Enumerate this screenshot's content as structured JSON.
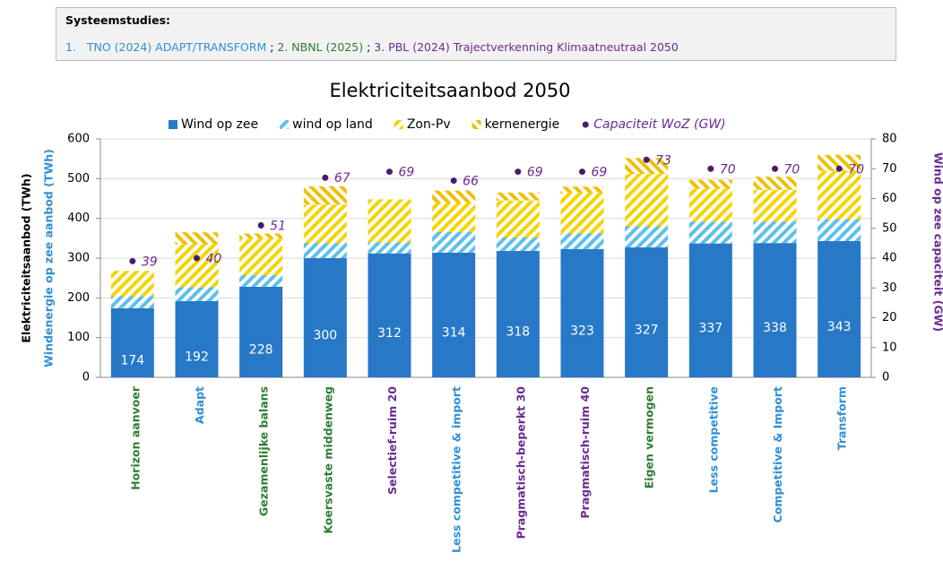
{
  "header": {
    "title": "Systeemstudies:",
    "segments": [
      {
        "text": "1.   TNO (2024) ADAPT/TRANSFORM",
        "color": "#2f8fd6"
      },
      {
        "text": " ; ",
        "color": "#000000"
      },
      {
        "text": "2. NBNL (2025)",
        "color": "#2e7d32"
      },
      {
        "text": " ; ",
        "color": "#000000"
      },
      {
        "text": "3. PBL (2024) Trajectverkenning Klimaatneutraal 2050",
        "color": "#6a2c91"
      }
    ]
  },
  "chart_data": {
    "type": "bar",
    "title": "Elektriciteitsaanbod 2050",
    "ylabel": "Elektriciteitsaanbod (TWh)",
    "ylabel2": "Windenergie op zee aanbod (TWh)",
    "y2label": "Wind op zee capaciteit (GW)",
    "categories": [
      "Horizon aanvoer",
      "Adapt",
      "Gezamenlijke balans",
      "Koersvaste middenweg",
      "Selectief-ruim 20",
      "Less competitive & import",
      "Pragmatisch-beperkt 30",
      "Pragmatisch-ruim 40",
      "Eigen vermogen",
      "Less competitive",
      "Competitive & Import",
      "Transform"
    ],
    "category_colors": [
      "#2e7d32",
      "#2f8fd6",
      "#2e7d32",
      "#2e7d32",
      "#6a2c91",
      "#2f8fd6",
      "#6a2c91",
      "#6a2c91",
      "#2e7d32",
      "#2f8fd6",
      "#2f8fd6",
      "#2f8fd6"
    ],
    "series": [
      {
        "name": "Wind op zee",
        "color": "#2878c8",
        "hatch": "none",
        "values": [
          174,
          192,
          228,
          300,
          312,
          314,
          318,
          323,
          327,
          337,
          338,
          343
        ]
      },
      {
        "name": "wind op land",
        "color": "#5bc0ee",
        "hatch": "right",
        "values": [
          30,
          35,
          29,
          38,
          28,
          52,
          34,
          39,
          53,
          55,
          54,
          55
        ]
      },
      {
        "name": "Zon-Pv",
        "color": "#f5d400",
        "hatch": "right",
        "values": [
          64,
          108,
          93,
          97,
          108,
          74,
          93,
          103,
          132,
          83,
          80,
          122
        ]
      },
      {
        "name": "kernenergie",
        "color": "#f0c000",
        "hatch": "left",
        "values": [
          0,
          30,
          12,
          46,
          0,
          30,
          20,
          15,
          40,
          22,
          33,
          40
        ]
      },
      {
        "name": "Capaciteit WoZ (GW)",
        "color": "#4b1a6e",
        "type": "scatter",
        "axis": "y2",
        "values": [
          39,
          40,
          51,
          67,
          69,
          66,
          69,
          69,
          73,
          70,
          70,
          70
        ]
      }
    ],
    "ylim": [
      0,
      600
    ],
    "yticks": [
      0,
      100,
      200,
      300,
      400,
      500,
      600
    ],
    "y2lim": [
      0,
      80
    ],
    "y2ticks": [
      0,
      10,
      20,
      30,
      40,
      50,
      60,
      70,
      80
    ]
  }
}
